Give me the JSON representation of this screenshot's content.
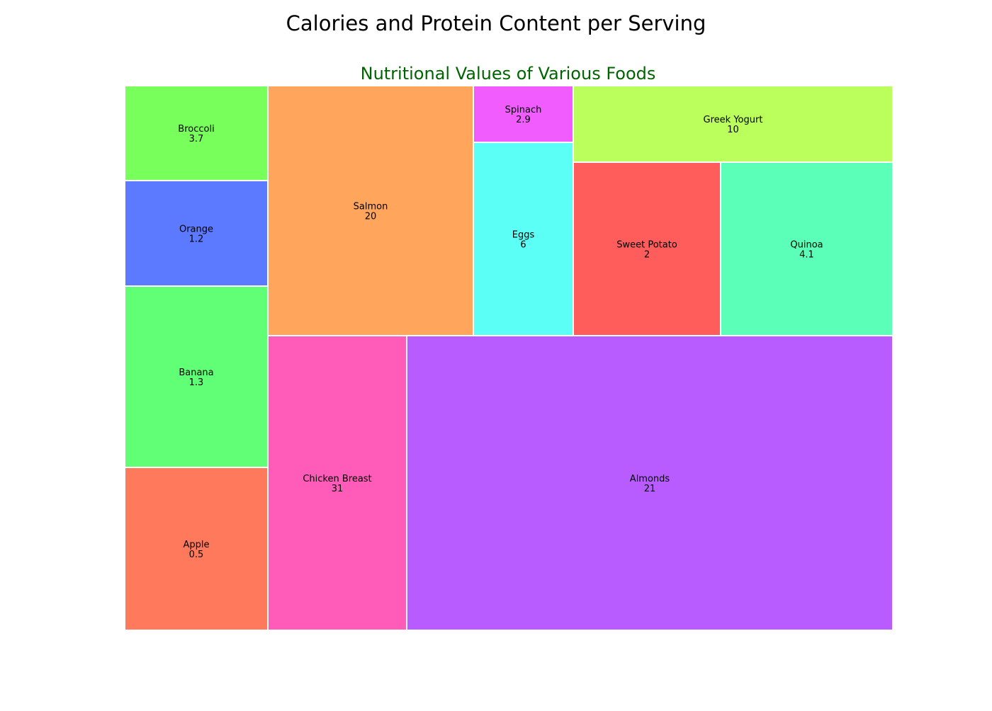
{
  "chart_data": {
    "type": "treemap",
    "title": "Calories and Protein Content per Serving",
    "subtitle": "Nutritional Values of Various Foods",
    "colors": {
      "subtitle": "#006400",
      "cell_border": "#ffffff"
    },
    "items": [
      {
        "label": "Apple",
        "value": "0.5",
        "color": "#ff7a5c"
      },
      {
        "label": "Banana",
        "value": "1.3",
        "color": "#61ff75"
      },
      {
        "label": "Orange",
        "value": "1.2",
        "color": "#5c7aff"
      },
      {
        "label": "Broccoli",
        "value": "3.7",
        "color": "#79ff5c"
      },
      {
        "label": "Chicken Breast",
        "value": "31",
        "color": "#ff5cb9"
      },
      {
        "label": "Salmon",
        "value": "20",
        "color": "#ffa65c"
      },
      {
        "label": "Almonds",
        "value": "21",
        "color": "#b85cff"
      },
      {
        "label": "Eggs",
        "value": "6",
        "color": "#5cfff5"
      },
      {
        "label": "Spinach",
        "value": "2.9",
        "color": "#f05cff"
      },
      {
        "label": "Sweet Potato",
        "value": "2",
        "color": "#ff5c5c"
      },
      {
        "label": "Quinoa",
        "value": "4.1",
        "color": "#5cffb8"
      },
      {
        "label": "Greek Yogurt",
        "value": "10",
        "color": "#bbff5c"
      }
    ]
  }
}
